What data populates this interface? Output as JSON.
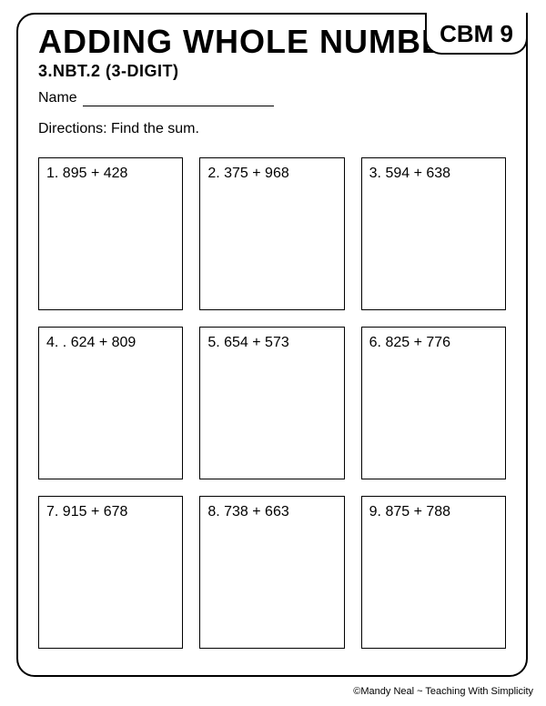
{
  "title": "ADDING WHOLE NUMBERS",
  "badge": "CBM 9",
  "standard": "3.NBT.2 (3-DIGIT)",
  "name_label": "Name",
  "directions": "Directions:  Find the sum.",
  "problems": [
    {
      "n": "1.",
      "expr": "895 + 428"
    },
    {
      "n": "2.",
      "expr": "375 + 968"
    },
    {
      "n": "3.",
      "expr": "594 + 638"
    },
    {
      "n": "4. .",
      "expr": "624 + 809"
    },
    {
      "n": "5.",
      "expr": "654 + 573"
    },
    {
      "n": "6.",
      "expr": "825 + 776"
    },
    {
      "n": "7.",
      "expr": "915 + 678"
    },
    {
      "n": "8.",
      "expr": "738 + 663"
    },
    {
      "n": "9.",
      "expr": "875 + 788"
    }
  ],
  "copyright": "©Mandy Neal ~ Teaching With Simplicity",
  "colors": {
    "border": "#000000",
    "background": "#ffffff",
    "text": "#000000"
  }
}
